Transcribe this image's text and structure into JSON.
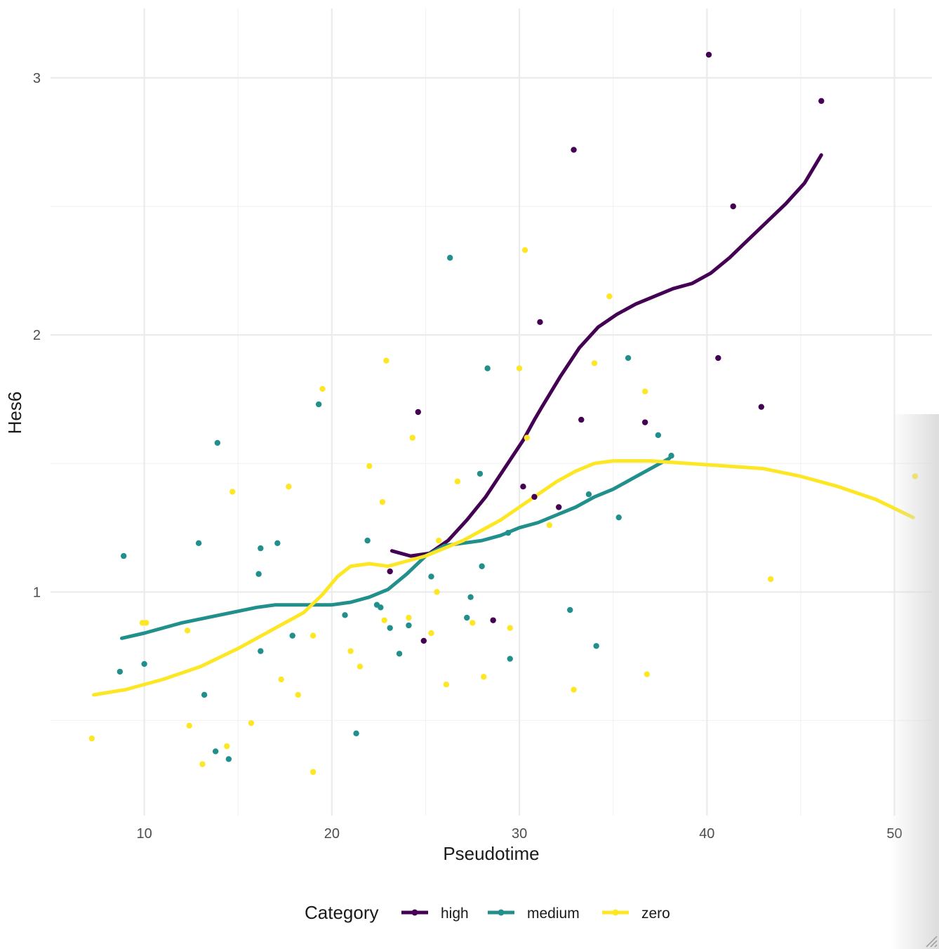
{
  "chart_data": {
    "type": "scatter",
    "xlabel": "Pseudotime",
    "ylabel": "Hes6",
    "xlim": [
      5,
      52
    ],
    "ylim": [
      0.13,
      3.27
    ],
    "x_ticks": [
      10,
      20,
      30,
      40,
      50
    ],
    "y_ticks": [
      1,
      2,
      3
    ],
    "grid": true,
    "legend": {
      "title": "Category",
      "position": "bottom"
    },
    "series": [
      {
        "name": "high",
        "color": "#440154",
        "points": [
          [
            40.1,
            3.09
          ],
          [
            46.1,
            2.91
          ],
          [
            32.9,
            2.72
          ],
          [
            41.4,
            2.5
          ],
          [
            31.1,
            2.05
          ],
          [
            40.6,
            1.91
          ],
          [
            42.9,
            1.72
          ],
          [
            24.6,
            1.7
          ],
          [
            33.3,
            1.67
          ],
          [
            36.7,
            1.66
          ],
          [
            30.2,
            1.41
          ],
          [
            30.8,
            1.37
          ],
          [
            32.1,
            1.33
          ],
          [
            23.1,
            1.08
          ],
          [
            28.6,
            0.89
          ],
          [
            24.9,
            0.81
          ]
        ],
        "trend": [
          [
            23.2,
            1.16
          ],
          [
            24.2,
            1.14
          ],
          [
            25.2,
            1.15
          ],
          [
            26.2,
            1.2
          ],
          [
            27.2,
            1.28
          ],
          [
            28.2,
            1.37
          ],
          [
            29.2,
            1.48
          ],
          [
            30.2,
            1.59
          ],
          [
            30.8,
            1.67
          ],
          [
            31.2,
            1.72
          ],
          [
            32.2,
            1.84
          ],
          [
            33.2,
            1.95
          ],
          [
            34.2,
            2.03
          ],
          [
            35.2,
            2.08
          ],
          [
            36.2,
            2.12
          ],
          [
            37.2,
            2.15
          ],
          [
            38.2,
            2.18
          ],
          [
            39.2,
            2.2
          ],
          [
            40.2,
            2.24
          ],
          [
            41.2,
            2.3
          ],
          [
            42.2,
            2.37
          ],
          [
            43.2,
            2.44
          ],
          [
            44.2,
            2.51
          ],
          [
            45.2,
            2.59
          ],
          [
            46.1,
            2.7
          ]
        ]
      },
      {
        "name": "medium",
        "color": "#21908C",
        "points": [
          [
            8.9,
            1.14
          ],
          [
            8.7,
            0.69
          ],
          [
            10.0,
            0.72
          ],
          [
            12.9,
            1.19
          ],
          [
            13.2,
            0.6
          ],
          [
            13.8,
            0.38
          ],
          [
            13.9,
            1.58
          ],
          [
            14.5,
            0.35
          ],
          [
            16.1,
            1.07
          ],
          [
            16.2,
            1.17
          ],
          [
            16.2,
            0.77
          ],
          [
            17.1,
            1.19
          ],
          [
            17.9,
            0.83
          ],
          [
            19.3,
            1.73
          ],
          [
            20.7,
            0.91
          ],
          [
            21.3,
            0.45
          ],
          [
            21.9,
            1.2
          ],
          [
            22.4,
            0.95
          ],
          [
            22.6,
            0.94
          ],
          [
            23.1,
            0.86
          ],
          [
            23.6,
            0.76
          ],
          [
            24.1,
            0.87
          ],
          [
            25.3,
            1.06
          ],
          [
            26.3,
            2.3
          ],
          [
            27.2,
            0.9
          ],
          [
            27.4,
            0.98
          ],
          [
            27.9,
            1.46
          ],
          [
            28.0,
            1.1
          ],
          [
            28.3,
            1.87
          ],
          [
            29.4,
            1.23
          ],
          [
            29.5,
            0.74
          ],
          [
            32.7,
            0.93
          ],
          [
            33.7,
            1.38
          ],
          [
            34.1,
            0.79
          ],
          [
            35.3,
            1.29
          ],
          [
            35.8,
            1.91
          ],
          [
            37.4,
            1.61
          ],
          [
            38.1,
            1.53
          ]
        ],
        "trend": [
          [
            8.8,
            0.82
          ],
          [
            10.0,
            0.84
          ],
          [
            12.0,
            0.88
          ],
          [
            14.0,
            0.91
          ],
          [
            16.0,
            0.94
          ],
          [
            17.0,
            0.95
          ],
          [
            18.0,
            0.95
          ],
          [
            19.0,
            0.95
          ],
          [
            20.0,
            0.95
          ],
          [
            21.0,
            0.96
          ],
          [
            22.0,
            0.98
          ],
          [
            23.0,
            1.01
          ],
          [
            24.0,
            1.07
          ],
          [
            25.0,
            1.14
          ],
          [
            26.0,
            1.18
          ],
          [
            27.0,
            1.19
          ],
          [
            28.0,
            1.2
          ],
          [
            29.0,
            1.22
          ],
          [
            30.0,
            1.25
          ],
          [
            31.0,
            1.27
          ],
          [
            32.0,
            1.3
          ],
          [
            33.0,
            1.33
          ],
          [
            34.0,
            1.37
          ],
          [
            35.0,
            1.4
          ],
          [
            36.0,
            1.44
          ],
          [
            37.0,
            1.48
          ],
          [
            38.0,
            1.52
          ]
        ]
      },
      {
        "name": "zero",
        "color": "#FDE725",
        "points": [
          [
            7.2,
            0.43
          ],
          [
            9.9,
            0.88
          ],
          [
            10.1,
            0.88
          ],
          [
            12.3,
            0.85
          ],
          [
            12.4,
            0.48
          ],
          [
            13.1,
            0.33
          ],
          [
            14.4,
            0.4
          ],
          [
            14.7,
            1.39
          ],
          [
            15.7,
            0.49
          ],
          [
            17.3,
            0.66
          ],
          [
            17.7,
            1.41
          ],
          [
            18.2,
            0.6
          ],
          [
            19.0,
            0.83
          ],
          [
            19.0,
            0.3
          ],
          [
            19.5,
            1.79
          ],
          [
            21.0,
            0.77
          ],
          [
            21.5,
            0.71
          ],
          [
            22.0,
            1.49
          ],
          [
            22.7,
            1.35
          ],
          [
            22.8,
            0.89
          ],
          [
            22.9,
            1.9
          ],
          [
            24.1,
            0.9
          ],
          [
            24.3,
            1.6
          ],
          [
            25.3,
            0.84
          ],
          [
            25.6,
            1.0
          ],
          [
            25.7,
            1.2
          ],
          [
            26.1,
            0.64
          ],
          [
            26.7,
            1.43
          ],
          [
            27.5,
            0.88
          ],
          [
            28.1,
            0.67
          ],
          [
            29.5,
            0.86
          ],
          [
            30.0,
            1.87
          ],
          [
            30.3,
            2.33
          ],
          [
            30.4,
            1.6
          ],
          [
            31.6,
            1.26
          ],
          [
            32.9,
            0.62
          ],
          [
            34.0,
            1.89
          ],
          [
            34.8,
            2.15
          ],
          [
            36.7,
            1.78
          ],
          [
            36.8,
            0.68
          ],
          [
            43.4,
            1.05
          ],
          [
            51.1,
            1.45
          ]
        ],
        "trend": [
          [
            7.3,
            0.6
          ],
          [
            9.0,
            0.62
          ],
          [
            11.0,
            0.66
          ],
          [
            13.0,
            0.71
          ],
          [
            15.0,
            0.78
          ],
          [
            17.0,
            0.86
          ],
          [
            18.5,
            0.92
          ],
          [
            19.5,
            0.99
          ],
          [
            20.3,
            1.06
          ],
          [
            21.0,
            1.1
          ],
          [
            22.0,
            1.11
          ],
          [
            23.0,
            1.1
          ],
          [
            24.0,
            1.12
          ],
          [
            25.0,
            1.14
          ],
          [
            26.0,
            1.17
          ],
          [
            27.0,
            1.2
          ],
          [
            28.0,
            1.24
          ],
          [
            29.0,
            1.28
          ],
          [
            30.0,
            1.33
          ],
          [
            31.0,
            1.38
          ],
          [
            32.0,
            1.43
          ],
          [
            33.0,
            1.47
          ],
          [
            34.0,
            1.5
          ],
          [
            35.0,
            1.51
          ],
          [
            37.0,
            1.51
          ],
          [
            39.0,
            1.5
          ],
          [
            41.0,
            1.49
          ],
          [
            43.0,
            1.48
          ],
          [
            45.0,
            1.45
          ],
          [
            47.0,
            1.41
          ],
          [
            49.0,
            1.36
          ],
          [
            51.0,
            1.29
          ]
        ]
      }
    ]
  }
}
